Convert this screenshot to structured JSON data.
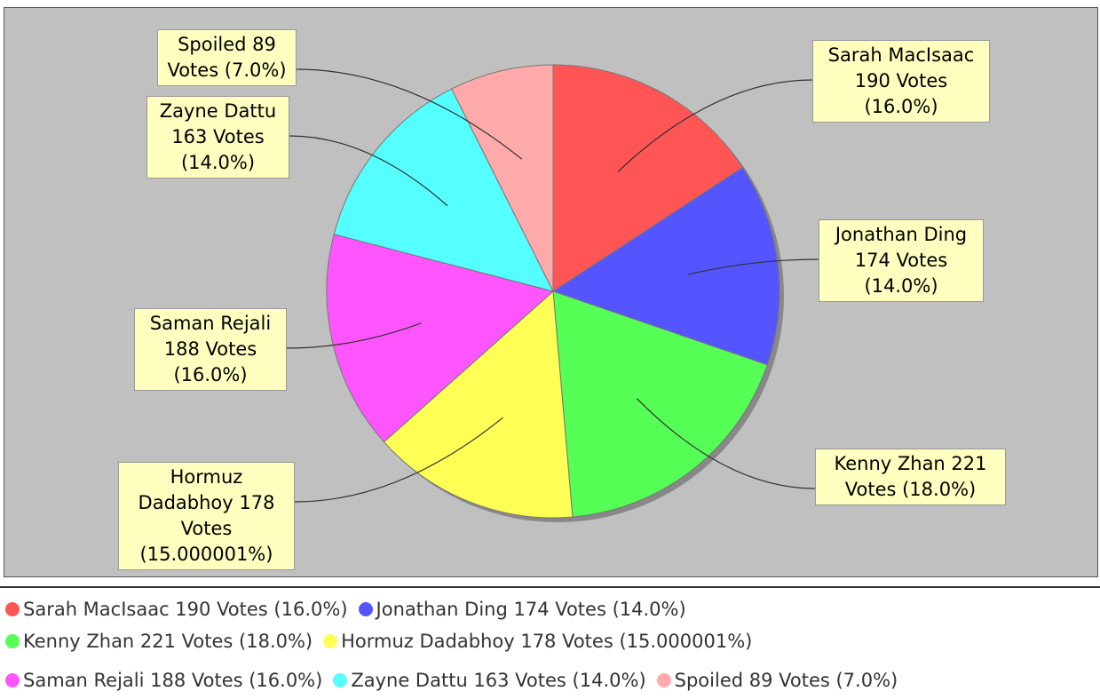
{
  "chart_data": {
    "type": "pie",
    "categories": [
      "Sarah MacIsaac 190 Votes (16.0%)",
      "Jonathan Ding 174 Votes (14.0%)",
      "Kenny Zhan 221 Votes (18.0%)",
      "Hormuz Dadabhoy 178 Votes (15.000001%)",
      "Saman Rejali 188 Votes (16.0%)",
      "Zayne Dattu 163 Votes (14.0%)",
      "Spoiled 89 Votes (7.0%)"
    ],
    "values": [
      190,
      174,
      221,
      178,
      188,
      163,
      89
    ],
    "colors": [
      "#ff5555",
      "#5555ff",
      "#55ff55",
      "#ffff55",
      "#ff55ff",
      "#55ffff",
      "#ffaaaa"
    ],
    "legend": "bottom"
  }
}
